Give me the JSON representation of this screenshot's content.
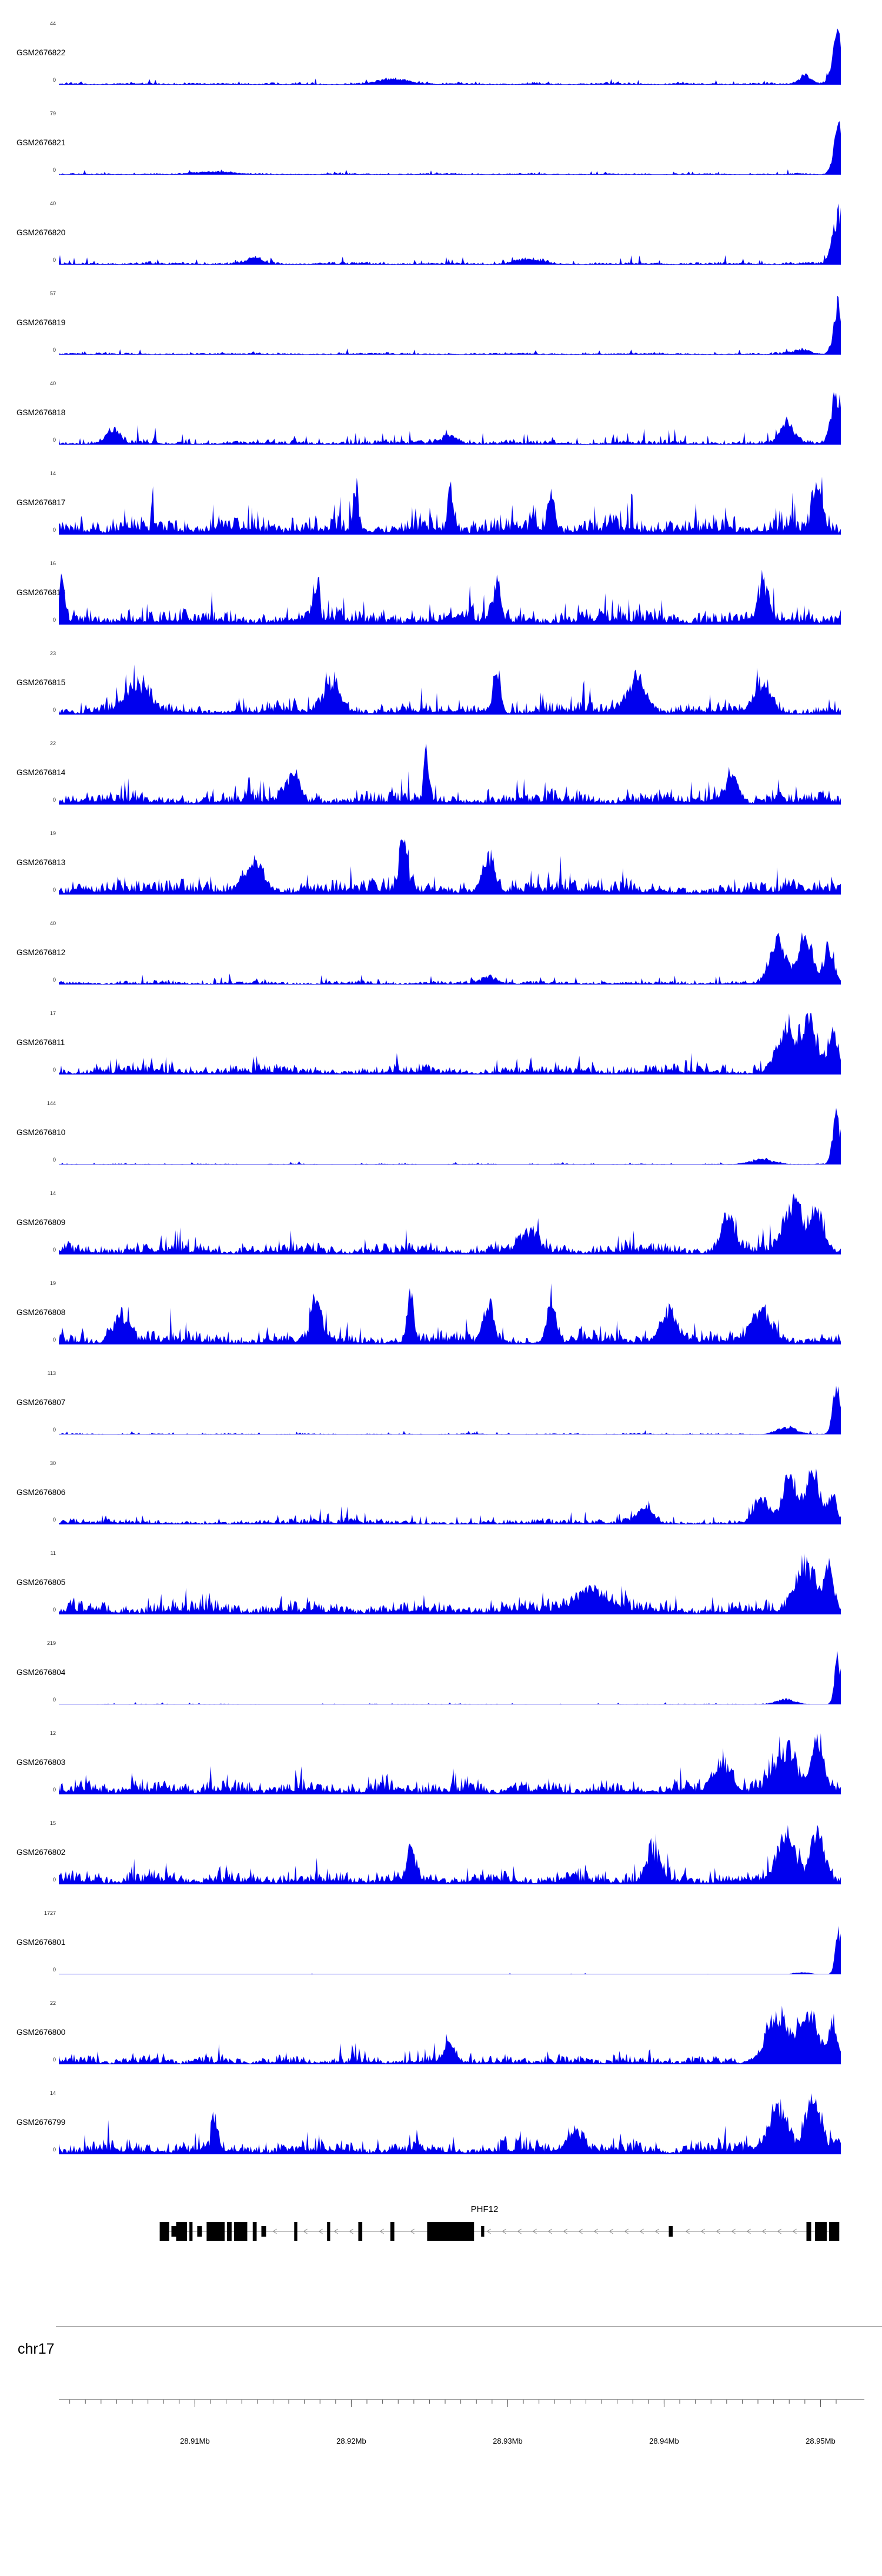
{
  "chart_data": {
    "type": "area",
    "layout": "genome-browser-coverage-tracks",
    "title": "",
    "style": {
      "fill": "#0000ee",
      "gene_color": "#000000",
      "axis_color": "#555555",
      "intron_color": "#888888",
      "background": "#ffffff"
    },
    "x_axis": {
      "chromosome": "chr17",
      "unit": "Mb",
      "range_mb": [
        28.9013,
        28.9513
      ],
      "minor_tick_step_mb": 0.001,
      "major_ticks": [
        {
          "mb": 28.91,
          "label": "28.91Mb"
        },
        {
          "mb": 28.92,
          "label": "28.92Mb"
        },
        {
          "mb": 28.93,
          "label": "28.93Mb"
        },
        {
          "mb": 28.94,
          "label": "28.94Mb"
        },
        {
          "mb": 28.95,
          "label": "28.95Mb"
        }
      ]
    },
    "y_axis_note": "each track scaled 0 to its own ymax",
    "tracks": [
      {
        "label": "GSM2676822",
        "ymax_label": "44",
        "ybase_label": "0",
        "seed": 101,
        "base": 0.05,
        "spike": 0.12,
        "spike_prob": 0.06,
        "peaks": [
          {
            "x": 0.43,
            "h": 0.1,
            "w": 0.02
          },
          {
            "x": 0.955,
            "h": 0.18,
            "w": 0.008
          },
          {
            "x": 0.997,
            "h": 1.0,
            "w": 0.007
          }
        ]
      },
      {
        "label": "GSM2676821",
        "ymax_label": "79",
        "ybase_label": "0",
        "seed": 102,
        "base": 0.035,
        "spike": 0.08,
        "spike_prob": 0.05,
        "peaks": [
          {
            "x": 0.2,
            "h": 0.06,
            "w": 0.02
          },
          {
            "x": 0.997,
            "h": 1.0,
            "w": 0.006
          }
        ]
      },
      {
        "label": "GSM2676820",
        "ymax_label": "40",
        "ybase_label": "0",
        "seed": 103,
        "base": 0.06,
        "spike": 0.15,
        "spike_prob": 0.08,
        "peaks": [
          {
            "x": 0.25,
            "h": 0.12,
            "w": 0.01
          },
          {
            "x": 0.6,
            "h": 0.1,
            "w": 0.015
          },
          {
            "x": 0.997,
            "h": 1.0,
            "w": 0.007
          }
        ]
      },
      {
        "label": "GSM2676819",
        "ymax_label": "57",
        "ybase_label": "0",
        "seed": 104,
        "base": 0.045,
        "spike": 0.1,
        "spike_prob": 0.06,
        "peaks": [
          {
            "x": 0.95,
            "h": 0.1,
            "w": 0.01
          },
          {
            "x": 0.997,
            "h": 1.0,
            "w": 0.006
          }
        ]
      },
      {
        "label": "GSM2676818",
        "ymax_label": "40",
        "ybase_label": "0",
        "seed": 105,
        "base": 0.1,
        "spike": 0.3,
        "spike_prob": 0.1,
        "peaks": [
          {
            "x": 0.07,
            "h": 0.3,
            "w": 0.008
          },
          {
            "x": 0.5,
            "h": 0.18,
            "w": 0.01
          },
          {
            "x": 0.93,
            "h": 0.45,
            "w": 0.008
          },
          {
            "x": 0.995,
            "h": 1.0,
            "w": 0.007
          }
        ]
      },
      {
        "label": "GSM2676817",
        "ymax_label": "14",
        "ybase_label": "0",
        "seed": 106,
        "base": 0.38,
        "spike": 0.5,
        "spike_prob": 0.18,
        "peaks": [
          {
            "x": 0.38,
            "h": 0.95,
            "w": 0.003
          },
          {
            "x": 0.5,
            "h": 1.0,
            "w": 0.003
          },
          {
            "x": 0.63,
            "h": 0.8,
            "w": 0.004
          },
          {
            "x": 0.97,
            "h": 0.85,
            "w": 0.006
          }
        ]
      },
      {
        "label": "GSM2676816",
        "ymax_label": "16",
        "ybase_label": "0",
        "seed": 107,
        "base": 0.34,
        "spike": 0.45,
        "spike_prob": 0.15,
        "peaks": [
          {
            "x": 0.004,
            "h": 1.0,
            "w": 0.003
          },
          {
            "x": 0.33,
            "h": 0.85,
            "w": 0.003
          },
          {
            "x": 0.56,
            "h": 0.8,
            "w": 0.004
          },
          {
            "x": 0.9,
            "h": 0.7,
            "w": 0.006
          }
        ]
      },
      {
        "label": "GSM2676815",
        "ymax_label": "23",
        "ybase_label": "0",
        "seed": 108,
        "base": 0.26,
        "spike": 0.4,
        "spike_prob": 0.1,
        "peaks": [
          {
            "x": 0.1,
            "h": 0.55,
            "w": 0.015
          },
          {
            "x": 0.35,
            "h": 0.6,
            "w": 0.01
          },
          {
            "x": 0.56,
            "h": 1.0,
            "w": 0.004
          },
          {
            "x": 0.74,
            "h": 0.65,
            "w": 0.012
          },
          {
            "x": 0.9,
            "h": 0.5,
            "w": 0.01
          }
        ]
      },
      {
        "label": "GSM2676814",
        "ymax_label": "22",
        "ybase_label": "0",
        "seed": 109,
        "base": 0.28,
        "spike": 0.4,
        "spike_prob": 0.12,
        "peaks": [
          {
            "x": 0.3,
            "h": 0.5,
            "w": 0.008
          },
          {
            "x": 0.47,
            "h": 1.0,
            "w": 0.003
          },
          {
            "x": 0.86,
            "h": 0.55,
            "w": 0.008
          }
        ]
      },
      {
        "label": "GSM2676813",
        "ymax_label": "19",
        "ybase_label": "0",
        "seed": 110,
        "base": 0.3,
        "spike": 0.4,
        "spike_prob": 0.12,
        "peaks": [
          {
            "x": 0.25,
            "h": 0.6,
            "w": 0.012
          },
          {
            "x": 0.44,
            "h": 0.95,
            "w": 0.005
          },
          {
            "x": 0.55,
            "h": 0.7,
            "w": 0.008
          }
        ]
      },
      {
        "label": "GSM2676812",
        "ymax_label": "40",
        "ybase_label": "0",
        "seed": 111,
        "base": 0.08,
        "spike": 0.2,
        "spike_prob": 0.1,
        "peaks": [
          {
            "x": 0.55,
            "h": 0.15,
            "w": 0.01
          },
          {
            "x": 0.92,
            "h": 0.9,
            "w": 0.01
          },
          {
            "x": 0.955,
            "h": 1.0,
            "w": 0.009
          },
          {
            "x": 0.985,
            "h": 0.8,
            "w": 0.006
          }
        ]
      },
      {
        "label": "GSM2676811",
        "ymax_label": "17",
        "ybase_label": "0",
        "seed": 112,
        "base": 0.2,
        "spike": 0.3,
        "spike_prob": 0.15,
        "peaks": [
          {
            "x": 0.93,
            "h": 0.8,
            "w": 0.012
          },
          {
            "x": 0.96,
            "h": 1.0,
            "w": 0.01
          },
          {
            "x": 0.99,
            "h": 0.7,
            "w": 0.006
          }
        ]
      },
      {
        "label": "GSM2676810",
        "ymax_label": "144",
        "ybase_label": "0",
        "seed": 113,
        "base": 0.02,
        "spike": 0.05,
        "spike_prob": 0.05,
        "peaks": [
          {
            "x": 0.9,
            "h": 0.1,
            "w": 0.015
          },
          {
            "x": 0.995,
            "h": 1.0,
            "w": 0.005
          }
        ]
      },
      {
        "label": "GSM2676809",
        "ymax_label": "14",
        "ybase_label": "0",
        "seed": 114,
        "base": 0.25,
        "spike": 0.35,
        "spike_prob": 0.12,
        "peaks": [
          {
            "x": 0.6,
            "h": 0.4,
            "w": 0.01
          },
          {
            "x": 0.855,
            "h": 0.75,
            "w": 0.008
          },
          {
            "x": 0.94,
            "h": 1.0,
            "w": 0.012
          },
          {
            "x": 0.97,
            "h": 0.9,
            "w": 0.008
          }
        ]
      },
      {
        "label": "GSM2676808",
        "ymax_label": "19",
        "ybase_label": "0",
        "seed": 115,
        "base": 0.28,
        "spike": 0.4,
        "spike_prob": 0.1,
        "peaks": [
          {
            "x": 0.08,
            "h": 0.55,
            "w": 0.01
          },
          {
            "x": 0.33,
            "h": 0.85,
            "w": 0.006
          },
          {
            "x": 0.45,
            "h": 1.0,
            "w": 0.004
          },
          {
            "x": 0.55,
            "h": 0.8,
            "w": 0.006
          },
          {
            "x": 0.63,
            "h": 0.9,
            "w": 0.005
          },
          {
            "x": 0.78,
            "h": 0.7,
            "w": 0.01
          },
          {
            "x": 0.9,
            "h": 0.6,
            "w": 0.012
          }
        ]
      },
      {
        "label": "GSM2676807",
        "ymax_label": "113",
        "ybase_label": "0",
        "seed": 116,
        "base": 0.025,
        "spike": 0.06,
        "spike_prob": 0.05,
        "peaks": [
          {
            "x": 0.93,
            "h": 0.15,
            "w": 0.012
          },
          {
            "x": 0.995,
            "h": 1.0,
            "w": 0.005
          }
        ]
      },
      {
        "label": "GSM2676806",
        "ymax_label": "30",
        "ybase_label": "0",
        "seed": 117,
        "base": 0.12,
        "spike": 0.25,
        "spike_prob": 0.1,
        "peaks": [
          {
            "x": 0.75,
            "h": 0.3,
            "w": 0.01
          },
          {
            "x": 0.9,
            "h": 0.5,
            "w": 0.01
          },
          {
            "x": 0.935,
            "h": 0.9,
            "w": 0.009
          },
          {
            "x": 0.965,
            "h": 1.0,
            "w": 0.009
          },
          {
            "x": 0.99,
            "h": 0.6,
            "w": 0.005
          }
        ]
      },
      {
        "label": "GSM2676805",
        "ymax_label": "11",
        "ybase_label": "0",
        "seed": 118,
        "base": 0.28,
        "spike": 0.3,
        "spike_prob": 0.12,
        "peaks": [
          {
            "x": 0.68,
            "h": 0.45,
            "w": 0.02
          },
          {
            "x": 0.955,
            "h": 1.0,
            "w": 0.012
          },
          {
            "x": 0.985,
            "h": 0.9,
            "w": 0.006
          }
        ]
      },
      {
        "label": "GSM2676804",
        "ymax_label": "219",
        "ybase_label": "0",
        "seed": 119,
        "base": 0.015,
        "spike": 0.04,
        "spike_prob": 0.04,
        "peaks": [
          {
            "x": 0.93,
            "h": 0.1,
            "w": 0.012
          },
          {
            "x": 0.996,
            "h": 1.0,
            "w": 0.004
          }
        ]
      },
      {
        "label": "GSM2676803",
        "ymax_label": "12",
        "ybase_label": "0",
        "seed": 120,
        "base": 0.3,
        "spike": 0.35,
        "spike_prob": 0.13,
        "peaks": [
          {
            "x": 0.85,
            "h": 0.6,
            "w": 0.01
          },
          {
            "x": 0.93,
            "h": 0.9,
            "w": 0.012
          },
          {
            "x": 0.97,
            "h": 1.0,
            "w": 0.008
          }
        ]
      },
      {
        "label": "GSM2676802",
        "ymax_label": "15",
        "ybase_label": "0",
        "seed": 121,
        "base": 0.28,
        "spike": 0.35,
        "spike_prob": 0.13,
        "peaks": [
          {
            "x": 0.45,
            "h": 0.7,
            "w": 0.005
          },
          {
            "x": 0.76,
            "h": 0.6,
            "w": 0.008
          },
          {
            "x": 0.93,
            "h": 0.9,
            "w": 0.012
          },
          {
            "x": 0.97,
            "h": 1.0,
            "w": 0.008
          }
        ]
      },
      {
        "label": "GSM2676801",
        "ymax_label": "1727",
        "ybase_label": "0",
        "seed": 122,
        "base": 0.006,
        "spike": 0.02,
        "spike_prob": 0.02,
        "peaks": [
          {
            "x": 0.95,
            "h": 0.04,
            "w": 0.01
          },
          {
            "x": 0.997,
            "h": 1.0,
            "w": 0.004
          }
        ]
      },
      {
        "label": "GSM2676800",
        "ymax_label": "22",
        "ybase_label": "0",
        "seed": 123,
        "base": 0.18,
        "spike": 0.3,
        "spike_prob": 0.12,
        "peaks": [
          {
            "x": 0.5,
            "h": 0.35,
            "w": 0.008
          },
          {
            "x": 0.92,
            "h": 0.9,
            "w": 0.015
          },
          {
            "x": 0.96,
            "h": 1.0,
            "w": 0.012
          },
          {
            "x": 0.99,
            "h": 0.8,
            "w": 0.005
          }
        ]
      },
      {
        "label": "GSM2676799",
        "ymax_label": "14",
        "ybase_label": "0",
        "seed": 124,
        "base": 0.3,
        "spike": 0.35,
        "spike_prob": 0.13,
        "peaks": [
          {
            "x": 0.2,
            "h": 0.55,
            "w": 0.004
          },
          {
            "x": 0.66,
            "h": 0.45,
            "w": 0.01
          },
          {
            "x": 0.92,
            "h": 0.95,
            "w": 0.012
          },
          {
            "x": 0.965,
            "h": 1.0,
            "w": 0.009
          }
        ]
      }
    ],
    "gene": {
      "name": "PHF12",
      "strand": "-",
      "span": [
        0.129,
        0.998
      ],
      "exons": [
        {
          "s": 0.129,
          "e": 0.141,
          "h": 32
        },
        {
          "s": 0.144,
          "e": 0.15,
          "h": 18
        },
        {
          "s": 0.15,
          "e": 0.164,
          "h": 32
        },
        {
          "s": 0.167,
          "e": 0.171,
          "h": 32
        },
        {
          "s": 0.177,
          "e": 0.183,
          "h": 18
        },
        {
          "s": 0.189,
          "e": 0.212,
          "h": 32
        },
        {
          "s": 0.215,
          "e": 0.221,
          "h": 32
        },
        {
          "s": 0.224,
          "e": 0.241,
          "h": 32
        },
        {
          "s": 0.248,
          "e": 0.253,
          "h": 32
        },
        {
          "s": 0.259,
          "e": 0.265,
          "h": 18
        },
        {
          "s": 0.301,
          "e": 0.305,
          "h": 32
        },
        {
          "s": 0.343,
          "e": 0.347,
          "h": 32
        },
        {
          "s": 0.383,
          "e": 0.388,
          "h": 32
        },
        {
          "s": 0.424,
          "e": 0.429,
          "h": 32
        },
        {
          "s": 0.471,
          "e": 0.531,
          "h": 32
        },
        {
          "s": 0.54,
          "e": 0.544,
          "h": 18
        },
        {
          "s": 0.78,
          "e": 0.785,
          "h": 18
        },
        {
          "s": 0.956,
          "e": 0.962,
          "h": 32
        },
        {
          "s": 0.967,
          "e": 0.982,
          "h": 32
        },
        {
          "s": 0.985,
          "e": 0.998,
          "h": 32
        }
      ]
    }
  }
}
